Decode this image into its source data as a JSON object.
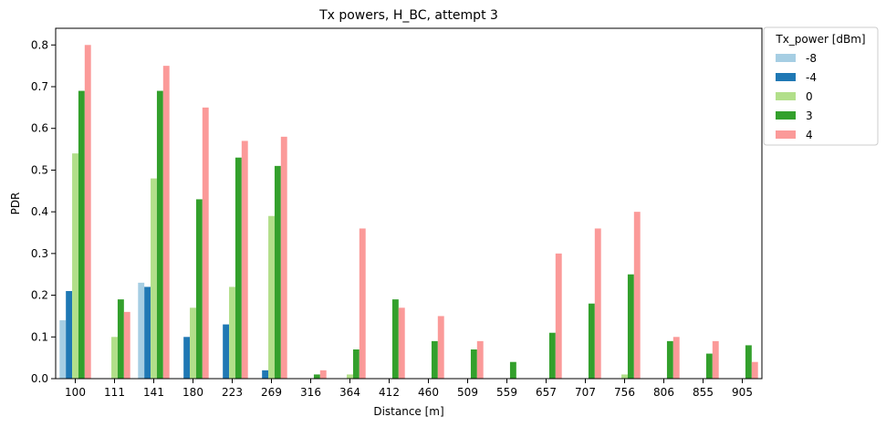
{
  "chart_data": {
    "type": "bar",
    "title": "Tx powers, H_BC, attempt 3",
    "xlabel": "Distance [m]",
    "ylabel": "PDR",
    "ylim": [
      0,
      0.84
    ],
    "yticks": [
      "0.0",
      "0.1",
      "0.2",
      "0.3",
      "0.4",
      "0.5",
      "0.6",
      "0.7",
      "0.8"
    ],
    "grid": false,
    "legend": {
      "title": "Tx_power [dBm]",
      "placement": "outside-top-right"
    },
    "categories": [
      "100",
      "111",
      "141",
      "180",
      "223",
      "269",
      "316",
      "364",
      "412",
      "460",
      "509",
      "559",
      "657",
      "707",
      "756",
      "806",
      "855",
      "905"
    ],
    "series": [
      {
        "name": "-8",
        "color": "#a6cee3",
        "values": [
          0.14,
          0,
          0.23,
          0,
          0,
          0,
          0,
          0,
          0,
          0,
          0,
          0,
          0,
          0,
          0,
          0,
          0,
          0
        ]
      },
      {
        "name": "-4",
        "color": "#1f78b4",
        "values": [
          0.21,
          0,
          0.22,
          0.1,
          0.13,
          0.02,
          0,
          0,
          0,
          0,
          0,
          0,
          0,
          0,
          0,
          0,
          0,
          0
        ]
      },
      {
        "name": "0",
        "color": "#b2df8a",
        "values": [
          0.54,
          0.1,
          0.48,
          0.17,
          0.22,
          0.39,
          0,
          0.01,
          0,
          0,
          0,
          0,
          0,
          0,
          0.01,
          0,
          0,
          0
        ]
      },
      {
        "name": "3",
        "color": "#33a02c",
        "values": [
          0.69,
          0.19,
          0.69,
          0.43,
          0.53,
          0.51,
          0.01,
          0.07,
          0.19,
          0.09,
          0.07,
          0.04,
          0.11,
          0.18,
          0.25,
          0.09,
          0.06,
          0.08
        ]
      },
      {
        "name": "4",
        "color": "#fb9a99",
        "values": [
          0.8,
          0.16,
          0.75,
          0.65,
          0.57,
          0.58,
          0.02,
          0.36,
          0.17,
          0.15,
          0.09,
          0,
          0.3,
          0.36,
          0.4,
          0.1,
          0.09,
          0.04
        ]
      }
    ]
  }
}
